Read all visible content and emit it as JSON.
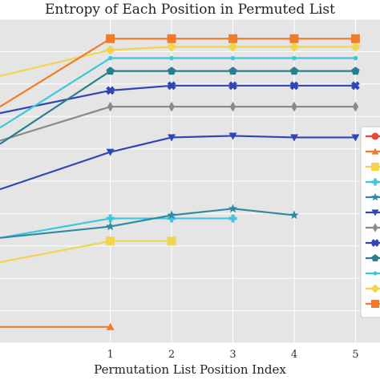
{
  "chart_data": {
    "type": "line",
    "title": "Entropy of Each Position in Permuted List",
    "xlabel": "Permutation List Position Index",
    "ylabel": "",
    "xlim": [
      -0.8,
      5.4
    ],
    "ylim": [
      0,
      20
    ],
    "xticks": [
      1,
      2,
      3,
      4,
      5
    ],
    "yticks": [],
    "grid": true,
    "background": "#e5e5e5",
    "grid_color": "#ffffff",
    "legend_position": "right",
    "series": [
      {
        "color": "#e8473b",
        "marker": "circle",
        "x": [],
        "y": []
      },
      {
        "color": "#f07c2a",
        "marker": "triangle",
        "x": [
          -0.8,
          1
        ],
        "y": [
          1.0,
          1.0
        ]
      },
      {
        "color": "#f2d44e",
        "marker": "square",
        "x": [
          -0.8,
          1,
          2
        ],
        "y": [
          5.0,
          6.3,
          6.3
        ]
      },
      {
        "color": "#3fc6de",
        "marker": "plus",
        "x": [
          -0.8,
          1,
          2,
          3
        ],
        "y": [
          6.5,
          7.7,
          7.7,
          7.7
        ]
      },
      {
        "color": "#2e8aa0",
        "marker": "star",
        "x": [
          -0.8,
          1,
          2,
          3,
          4
        ],
        "y": [
          6.5,
          7.2,
          7.9,
          8.3,
          7.9
        ]
      },
      {
        "color": "#2f46b4",
        "marker": "triangle-down",
        "x": [
          -0.8,
          1,
          2,
          3,
          4,
          5
        ],
        "y": [
          9.5,
          11.8,
          12.7,
          12.8,
          12.7,
          12.7
        ]
      },
      {
        "color": "#8a8a8a",
        "marker": "diamond-thin",
        "x": [
          -0.8,
          1,
          2,
          3,
          4,
          5
        ],
        "y": [
          12.5,
          14.6,
          14.6,
          14.6,
          14.6,
          14.6
        ]
      },
      {
        "color": "#2f46b4",
        "marker": "x-filled",
        "x": [
          -0.8,
          1,
          2,
          3,
          4,
          5
        ],
        "y": [
          14.2,
          15.6,
          15.9,
          15.9,
          15.9,
          15.9
        ]
      },
      {
        "color": "#2a7f8f",
        "marker": "pentagon",
        "x": [
          -0.8,
          1,
          2,
          3,
          4,
          5
        ],
        "y": [
          12.3,
          16.8,
          16.8,
          16.8,
          16.8,
          16.8
        ]
      },
      {
        "color": "#3fc6de",
        "marker": "dot",
        "x": [
          -0.8,
          1,
          2,
          3,
          4,
          5
        ],
        "y": [
          13.3,
          17.6,
          17.6,
          17.6,
          17.6,
          17.6
        ]
      },
      {
        "color": "#f2d44e",
        "marker": "diamond",
        "x": [
          -0.8,
          1,
          2,
          3,
          4,
          5
        ],
        "y": [
          16.5,
          18.1,
          18.3,
          18.3,
          18.3,
          18.3
        ]
      },
      {
        "color": "#f07c2a",
        "marker": "square",
        "x": [
          -0.8,
          1,
          2,
          3,
          4,
          5
        ],
        "y": [
          14.6,
          18.8,
          18.8,
          18.8,
          18.8,
          18.8
        ]
      }
    ]
  }
}
